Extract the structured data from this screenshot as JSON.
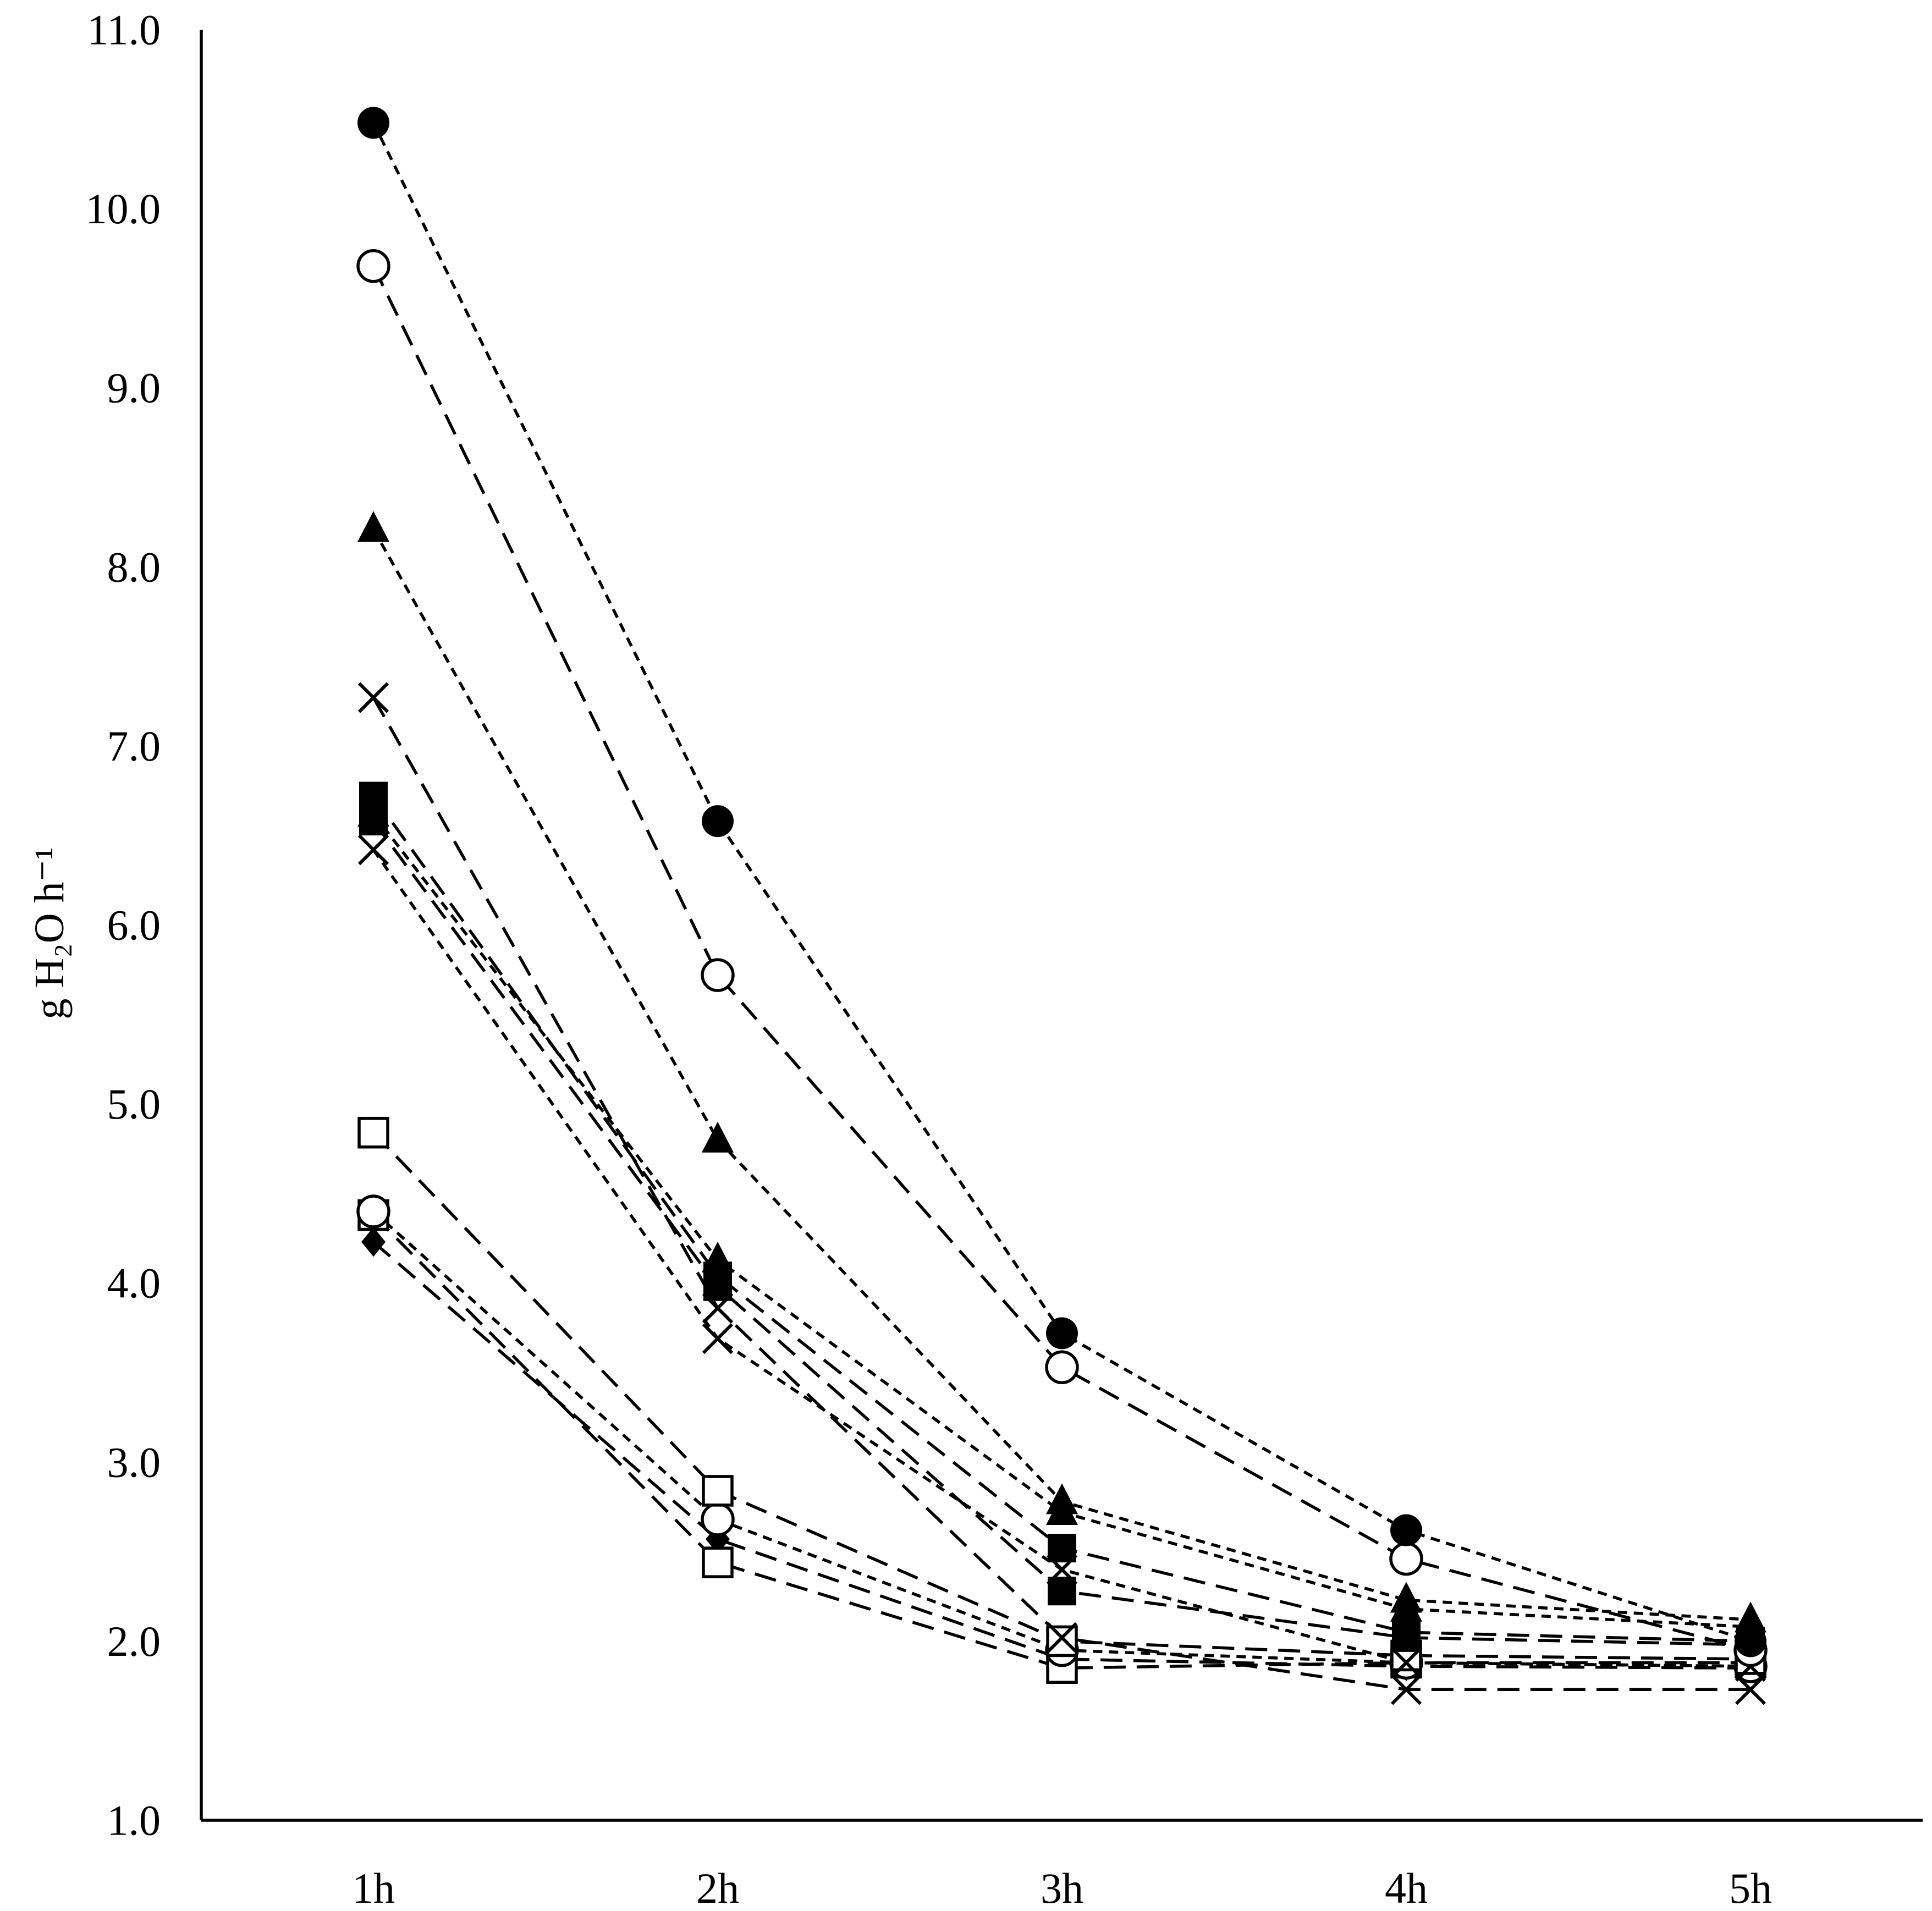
{
  "chart_data": {
    "type": "line",
    "ylabel": "g H₂O h⁻¹",
    "categories": [
      "1h",
      "2h",
      "3h",
      "4h",
      "5h"
    ],
    "ylim": [
      1.0,
      11.0
    ],
    "yticks": [
      "1.0",
      "2.0",
      "3.0",
      "4.0",
      "5.0",
      "6.0",
      "7.0",
      "8.0",
      "9.0",
      "10.0",
      "11.0"
    ],
    "grid": false,
    "series": [
      {
        "marker": "filled-circle",
        "values": [
          10.48,
          6.58,
          3.72,
          2.62,
          2.0
        ]
      },
      {
        "marker": "open-circle",
        "values": [
          9.68,
          5.72,
          3.53,
          2.46,
          1.95
        ]
      },
      {
        "marker": "filled-triangle",
        "values": [
          8.21,
          4.8,
          2.78,
          2.23,
          2.12
        ]
      },
      {
        "marker": "cross",
        "values": [
          7.27,
          3.86,
          2.02,
          1.73,
          1.73
        ]
      },
      {
        "marker": "filled-square",
        "values": [
          6.72,
          4.04,
          2.52,
          2.05,
          2.0
        ]
      },
      {
        "marker": "filled-triangle",
        "values": [
          6.62,
          4.13,
          2.72,
          2.18,
          2.08
        ]
      },
      {
        "marker": "filled-square",
        "values": [
          6.58,
          3.98,
          2.28,
          2.02,
          1.98
        ]
      },
      {
        "marker": "cross",
        "values": [
          6.42,
          3.69,
          2.4,
          1.88,
          1.86
        ]
      },
      {
        "marker": "open-square",
        "values": [
          4.84,
          2.84,
          2.0,
          1.92,
          1.9
        ]
      },
      {
        "marker": "open-circle",
        "values": [
          4.4,
          2.68,
          1.95,
          1.88,
          1.86
        ]
      },
      {
        "marker": "open-square",
        "values": [
          4.38,
          2.44,
          1.85,
          1.88,
          1.88
        ]
      },
      {
        "marker": "filled-diamond",
        "values": [
          4.23,
          2.57,
          1.9,
          1.86,
          1.85
        ]
      }
    ]
  }
}
